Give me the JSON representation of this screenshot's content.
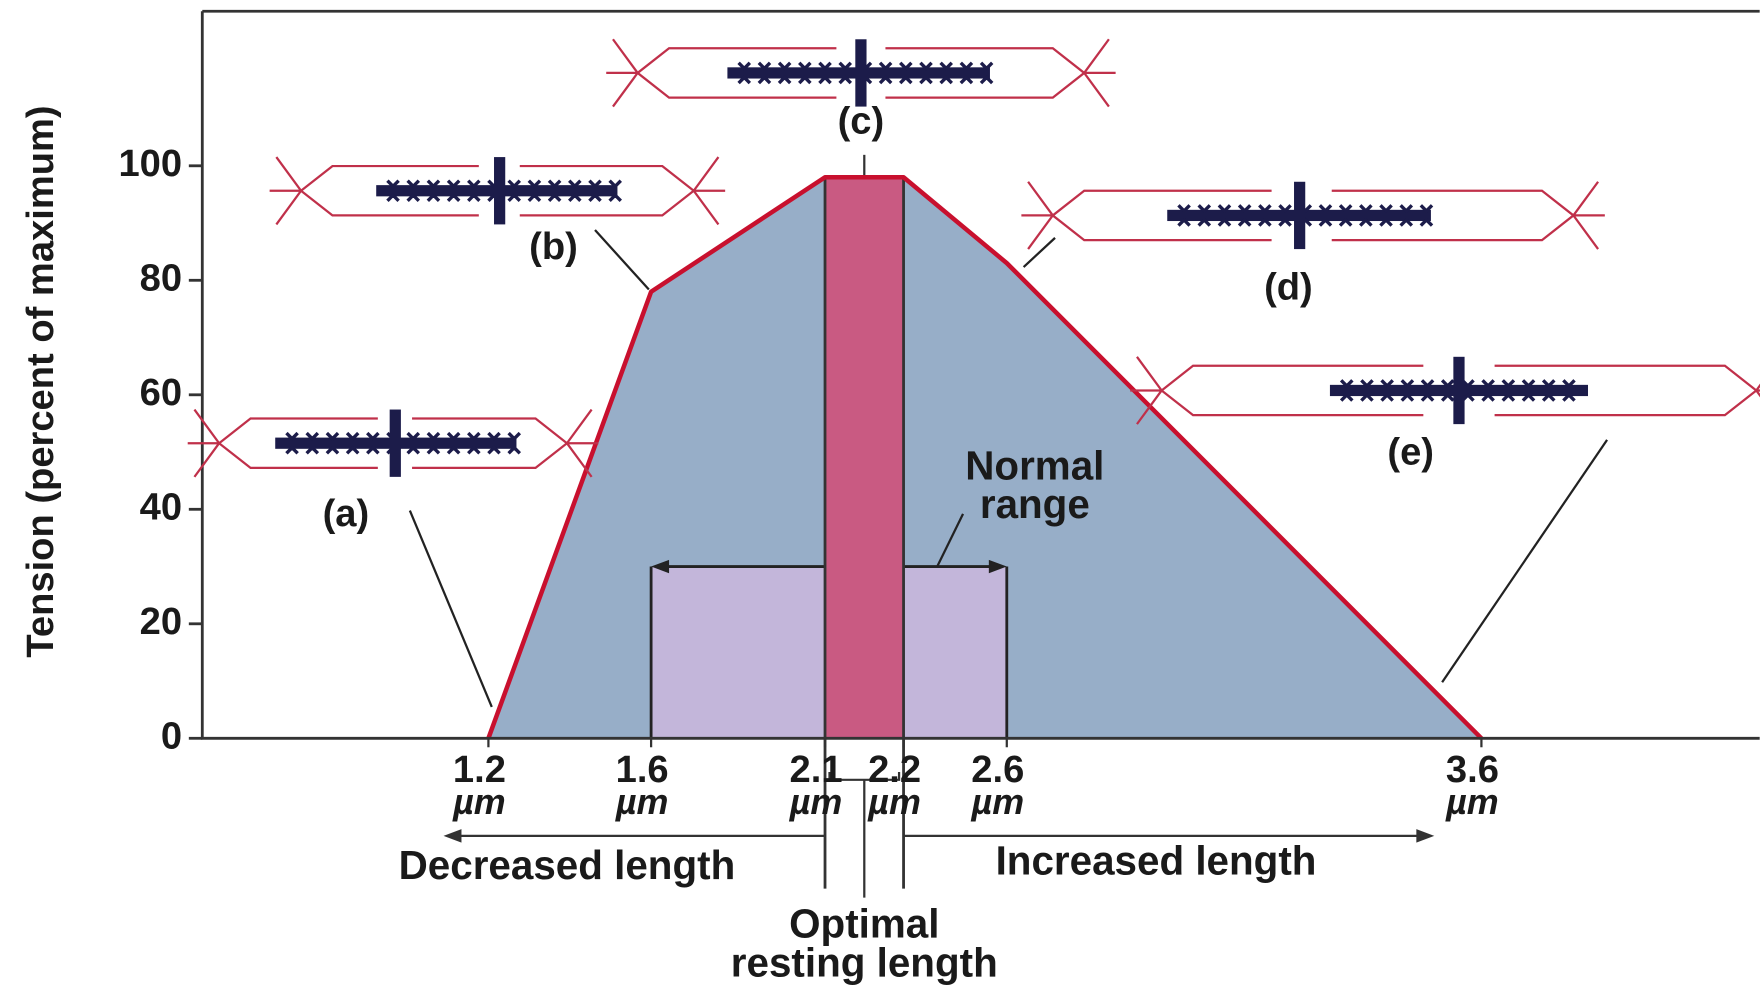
{
  "chart_data": {
    "type": "area",
    "y_label": "Tension (percent of maximum)",
    "categories": [
      "1.2",
      "1.6",
      "2.1",
      "2.2",
      "2.6",
      "3.6"
    ],
    "x_unit": "µm",
    "values": [
      0,
      78,
      98,
      98,
      83,
      0
    ],
    "color": "#c8102e",
    "fill": "#97aec8",
    "ylim": [
      0,
      127
    ],
    "yticks": [
      0,
      20,
      40,
      60,
      80,
      100
    ],
    "regions": [
      {
        "lines": [
          "Normal",
          "range"
        ],
        "from": "1.6",
        "to": "2.6",
        "top": 30,
        "color": "#c3b6da"
      },
      {
        "lines": [
          "Optimal",
          "resting length"
        ],
        "from": "2.1",
        "to": "2.2",
        "top": 98,
        "color": "#c95a82"
      }
    ],
    "sarcomeres": [
      {
        "label": "(a)"
      },
      {
        "label": "(b)"
      },
      {
        "label": "(c)"
      },
      {
        "label": "(d)"
      },
      {
        "label": "(e)"
      }
    ],
    "directions": {
      "decreased": "Decreased length",
      "increased": "Increased length"
    }
  }
}
